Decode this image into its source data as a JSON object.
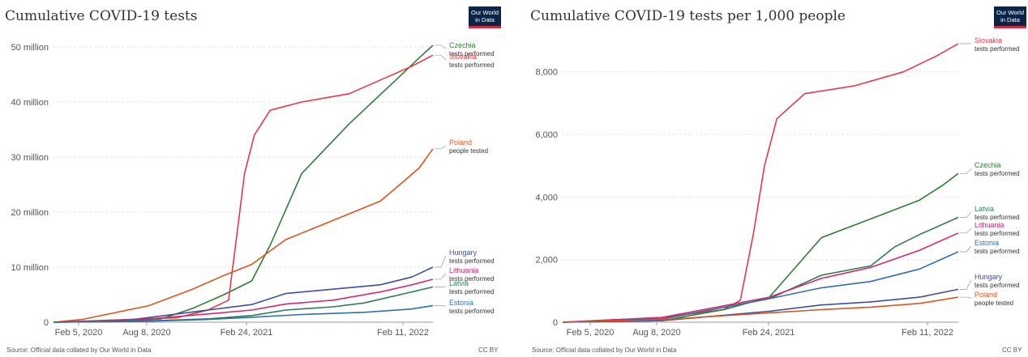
{
  "panels": [
    {
      "title": "Cumulative COVID-19 tests",
      "logo_text": "Our World\nin Data",
      "source": "Source: Official data collated by Our World in Data",
      "license": "CC BY"
    },
    {
      "title": "Cumulative COVID-19 tests per 1,000 people",
      "logo_text": "Our World\nin Data",
      "source": "Source: Official data collated by Our World in Data",
      "license": "CC BY"
    }
  ],
  "chart_data": [
    {
      "type": "line",
      "title": "Cumulative COVID-19 tests",
      "xlabel": "",
      "ylabel": "",
      "x_ticks": [
        "Feb 5, 2020",
        "Aug 8, 2020",
        "Feb 24, 2021",
        "Feb 11, 2022"
      ],
      "y_ticks": [
        "0",
        "10 million",
        "20 million",
        "30 million",
        "40 million",
        "50 million"
      ],
      "ylim": [
        0,
        50000000
      ],
      "x_range": [
        "2020-02-05",
        "2022-02-11"
      ],
      "grid": true,
      "legend": "right-edge labels",
      "series": [
        {
          "name": "Czechia",
          "metric": "tests performed",
          "color": "#2e7d32",
          "points": [
            [
              "2020-02-05",
              0
            ],
            [
              "2020-06-01",
              100000
            ],
            [
              "2020-09-01",
              600000
            ],
            [
              "2020-11-01",
              2500000
            ],
            [
              "2021-01-01",
              5000000
            ],
            [
              "2021-02-24",
              7500000
            ],
            [
              "2021-04-01",
              14000000
            ],
            [
              "2021-06-01",
              27000000
            ],
            [
              "2021-09-01",
              36000000
            ],
            [
              "2021-12-01",
              44000000
            ],
            [
              "2022-01-15",
              48000000
            ],
            [
              "2022-02-11",
              50300000
            ]
          ]
        },
        {
          "name": "Slovakia",
          "metric": "tests performed",
          "color": "#e63946",
          "points": [
            [
              "2020-02-05",
              0
            ],
            [
              "2020-10-01",
              800000
            ],
            [
              "2020-12-01",
              2200000
            ],
            [
              "2021-01-10",
              4000000
            ],
            [
              "2021-01-25",
              15000000
            ],
            [
              "2021-02-10",
              27000000
            ],
            [
              "2021-03-01",
              34000000
            ],
            [
              "2021-04-01",
              38500000
            ],
            [
              "2021-06-01",
              40000000
            ],
            [
              "2021-09-01",
              41500000
            ],
            [
              "2021-11-01",
              44000000
            ],
            [
              "2022-01-01",
              46500000
            ],
            [
              "2022-02-11",
              48500000
            ]
          ]
        },
        {
          "name": "Poland",
          "metric": "people tested",
          "color": "#d9541e",
          "points": [
            [
              "2020-02-05",
              0
            ],
            [
              "2020-04-01",
              500000
            ],
            [
              "2020-08-08",
              3000000
            ],
            [
              "2020-11-01",
              6000000
            ],
            [
              "2021-01-01",
              8500000
            ],
            [
              "2021-02-24",
              10500000
            ],
            [
              "2021-05-01",
              15000000
            ],
            [
              "2021-08-01",
              18500000
            ],
            [
              "2021-11-01",
              22000000
            ],
            [
              "2021-12-15",
              25500000
            ],
            [
              "2022-01-15",
              28000000
            ],
            [
              "2022-02-11",
              31500000
            ]
          ]
        },
        {
          "name": "Hungary",
          "metric": "tests performed",
          "color": "#3d4fa1",
          "points": [
            [
              "2020-02-05",
              0
            ],
            [
              "2020-07-01",
              400000
            ],
            [
              "2020-12-01",
              2200000
            ],
            [
              "2021-02-24",
              3200000
            ],
            [
              "2021-05-01",
              5200000
            ],
            [
              "2021-08-01",
              6000000
            ],
            [
              "2021-11-01",
              6800000
            ],
            [
              "2022-01-01",
              8200000
            ],
            [
              "2022-02-11",
              10000000
            ]
          ]
        },
        {
          "name": "Lithuania",
          "metric": "tests performed",
          "color": "#d6286b",
          "points": [
            [
              "2020-02-05",
              0
            ],
            [
              "2020-07-01",
              300000
            ],
            [
              "2020-12-01",
              1500000
            ],
            [
              "2021-02-24",
              2200000
            ],
            [
              "2021-05-01",
              3300000
            ],
            [
              "2021-08-01",
              4000000
            ],
            [
              "2021-11-01",
              5500000
            ],
            [
              "2022-01-01",
              6800000
            ],
            [
              "2022-02-11",
              7800000
            ]
          ]
        },
        {
          "name": "Latvia",
          "metric": "tests performed",
          "color": "#2e7d4f",
          "points": [
            [
              "2020-02-05",
              0
            ],
            [
              "2020-08-01",
              200000
            ],
            [
              "2020-12-01",
              600000
            ],
            [
              "2021-02-24",
              1200000
            ],
            [
              "2021-05-01",
              2200000
            ],
            [
              "2021-08-01",
              2800000
            ],
            [
              "2021-10-01",
              3500000
            ],
            [
              "2022-01-01",
              5500000
            ],
            [
              "2022-02-11",
              6400000
            ]
          ]
        },
        {
          "name": "Estonia",
          "metric": "tests performed",
          "color": "#2f6fb0",
          "points": [
            [
              "2020-02-05",
              0
            ],
            [
              "2020-08-01",
              150000
            ],
            [
              "2020-12-01",
              500000
            ],
            [
              "2021-02-24",
              900000
            ],
            [
              "2021-06-01",
              1400000
            ],
            [
              "2021-10-01",
              1800000
            ],
            [
              "2022-01-01",
              2400000
            ],
            [
              "2022-02-11",
              3000000
            ]
          ]
        }
      ]
    },
    {
      "type": "line",
      "title": "Cumulative COVID-19 tests per 1,000 people",
      "xlabel": "",
      "ylabel": "",
      "x_ticks": [
        "Feb 5, 2020",
        "Aug 8, 2020",
        "Feb 24, 2021",
        "Feb 11, 2022"
      ],
      "y_ticks": [
        "0",
        "2,000",
        "4,000",
        "6,000",
        "8,000"
      ],
      "ylim": [
        0,
        9000
      ],
      "x_range": [
        "2020-02-05",
        "2022-02-11"
      ],
      "grid": true,
      "legend": "right-edge labels",
      "series": [
        {
          "name": "Slovakia",
          "metric": "tests performed",
          "color": "#e63946",
          "points": [
            [
              "2020-02-05",
              0
            ],
            [
              "2020-08-08",
              150
            ],
            [
              "2020-12-01",
              400
            ],
            [
              "2021-01-01",
              700
            ],
            [
              "2021-01-25",
              2800
            ],
            [
              "2021-02-15",
              5000
            ],
            [
              "2021-03-10",
              6500
            ],
            [
              "2021-05-01",
              7300
            ],
            [
              "2021-08-01",
              7550
            ],
            [
              "2021-11-01",
              8000
            ],
            [
              "2022-01-01",
              8500
            ],
            [
              "2022-02-11",
              8900
            ]
          ]
        },
        {
          "name": "Czechia",
          "metric": "tests performed",
          "color": "#2e7d32",
          "points": [
            [
              "2020-02-05",
              0
            ],
            [
              "2020-08-08",
              50
            ],
            [
              "2020-12-01",
              400
            ],
            [
              "2021-02-24",
              800
            ],
            [
              "2021-06-01",
              2700
            ],
            [
              "2021-09-01",
              3300
            ],
            [
              "2021-12-01",
              3900
            ],
            [
              "2022-01-15",
              4400
            ],
            [
              "2022-02-11",
              4750
            ]
          ]
        },
        {
          "name": "Latvia",
          "metric": "tests performed",
          "color": "#2e7d4f",
          "points": [
            [
              "2020-02-05",
              0
            ],
            [
              "2020-08-08",
              100
            ],
            [
              "2021-02-24",
              750
            ],
            [
              "2021-06-01",
              1500
            ],
            [
              "2021-09-01",
              1800
            ],
            [
              "2021-10-15",
              2400
            ],
            [
              "2021-12-01",
              2800
            ],
            [
              "2022-02-11",
              3350
            ]
          ]
        },
        {
          "name": "Lithuania",
          "metric": "tests performed",
          "color": "#d6286b",
          "points": [
            [
              "2020-02-05",
              0
            ],
            [
              "2020-08-08",
              150
            ],
            [
              "2021-02-24",
              800
            ],
            [
              "2021-06-01",
              1400
            ],
            [
              "2021-09-01",
              1750
            ],
            [
              "2021-12-01",
              2300
            ],
            [
              "2022-02-11",
              2850
            ]
          ]
        },
        {
          "name": "Estonia",
          "metric": "tests performed",
          "color": "#2f6fb0",
          "points": [
            [
              "2020-02-05",
              0
            ],
            [
              "2020-08-08",
              100
            ],
            [
              "2021-02-24",
              750
            ],
            [
              "2021-06-01",
              1100
            ],
            [
              "2021-09-01",
              1300
            ],
            [
              "2021-12-01",
              1700
            ],
            [
              "2022-02-11",
              2250
            ]
          ]
        },
        {
          "name": "Hungary",
          "metric": "tests performed",
          "color": "#3d4fa1",
          "points": [
            [
              "2020-02-05",
              0
            ],
            [
              "2020-08-08",
              50
            ],
            [
              "2021-02-24",
              350
            ],
            [
              "2021-06-01",
              550
            ],
            [
              "2021-09-01",
              650
            ],
            [
              "2021-12-01",
              800
            ],
            [
              "2022-02-11",
              1050
            ]
          ]
        },
        {
          "name": "Poland",
          "metric": "people tested",
          "color": "#d9541e",
          "points": [
            [
              "2020-02-05",
              0
            ],
            [
              "2020-08-08",
              80
            ],
            [
              "2021-02-24",
              300
            ],
            [
              "2021-06-01",
              400
            ],
            [
              "2021-09-01",
              480
            ],
            [
              "2021-12-01",
              600
            ],
            [
              "2022-02-11",
              800
            ]
          ]
        }
      ]
    }
  ]
}
